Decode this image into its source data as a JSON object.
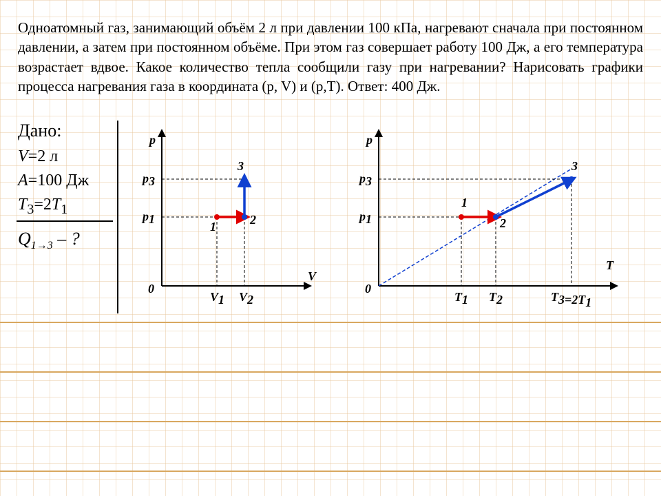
{
  "problem_text": "Одноатомный газ, занимающий объём 2 л при давлении 100 кПа, нагревают сначала при постоянном давлении, а затем при постоянном объёме. При этом газ совершает работу 100 Дж, а его температура возрастает вдвое. Какое количество тепла сообщили газу при нагревании? Нарисовать графики процесса нагревания газа в координата (p, V) и (p,T).    Ответ: 400 Дж.",
  "dano": "Дано:",
  "given_html": "<span class='it'>V</span>=2 л<br><span class='it'>A</span>=100 Дж<br><span class='it'>T</span><sub>3</sub>=2<span class='it'>T</span><sub>1</sub>",
  "unknown": "Q",
  "unknown_sub": "1→3",
  "unknown_tail": " – ?",
  "grid": {
    "step": 24,
    "color": "#e8c9a0",
    "bold_color": "#d8a860"
  },
  "chartPV": {
    "origin_label": "0",
    "y_label": "p",
    "x_label": "V",
    "ticks_y": [
      "p₃",
      "p₁"
    ],
    "ticks_x": [
      "V₁",
      "V₂"
    ],
    "pt_labels": [
      "1",
      "2",
      "3"
    ],
    "colors": {
      "seg12": "#e00000",
      "seg23": "#1040d0"
    }
  },
  "chartPT": {
    "origin_label": "0",
    "y_label": "p",
    "x_label": "T",
    "ticks_y": [
      "p₃",
      "p₁"
    ],
    "ticks_x": [
      "T₁",
      "T₂",
      "T₃=2T₁"
    ],
    "pt_labels": [
      "1",
      "2",
      "3"
    ],
    "colors": {
      "seg12": "#e00000",
      "seg23": "#1040d0"
    }
  }
}
